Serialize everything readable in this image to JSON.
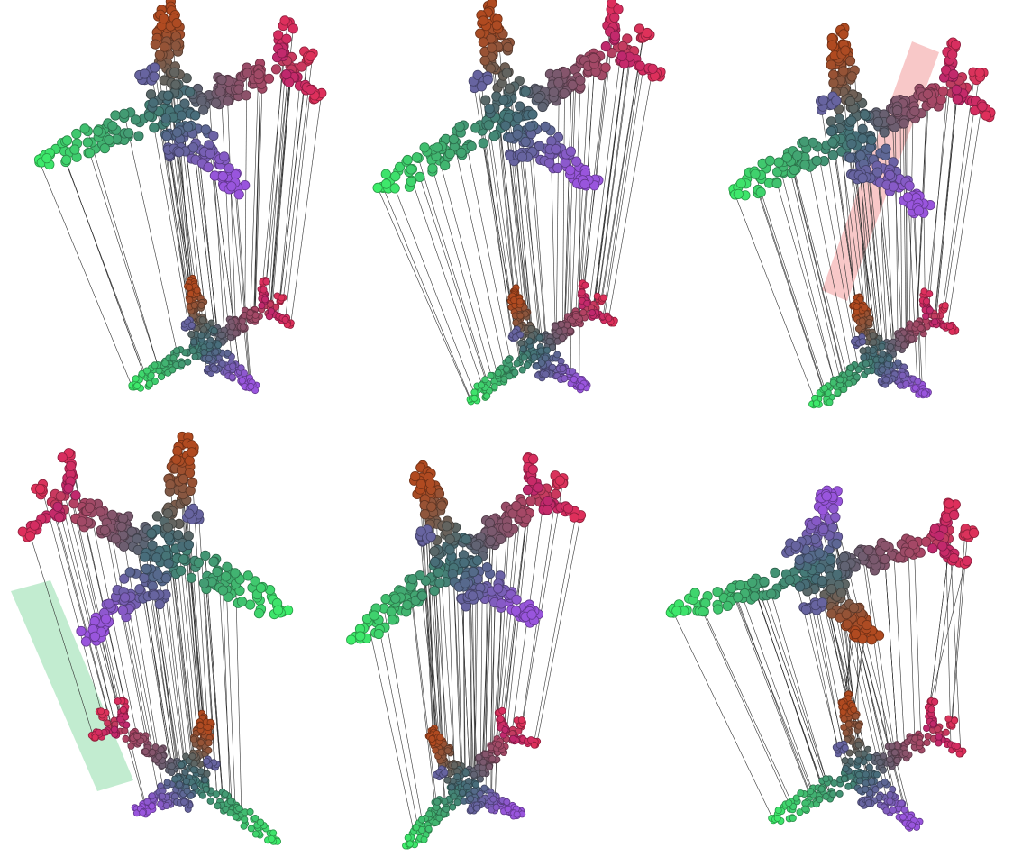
{
  "figure": {
    "description_hidden": "",
    "panels": [
      {
        "id": "panel-1",
        "row": 1,
        "col": 1,
        "highlight": null
      },
      {
        "id": "panel-2",
        "row": 1,
        "col": 2,
        "highlight": null
      },
      {
        "id": "panel-3",
        "row": 1,
        "col": 3,
        "highlight": "incorrect-correspondence"
      },
      {
        "id": "panel-4",
        "row": 2,
        "col": 1,
        "highlight": "correct-correspondence"
      },
      {
        "id": "panel-5",
        "row": 2,
        "col": 2,
        "highlight": null
      },
      {
        "id": "panel-6",
        "row": 2,
        "col": 3,
        "highlight": null
      }
    ]
  },
  "colors": {
    "nose": "#3df06a",
    "tail": "#e0305a",
    "wing_left": "#9955dd",
    "wing_right": "#b04a20",
    "fin": "#8a6a10",
    "correspondence_line": "#333333",
    "highlight_red": "#f29a9a",
    "highlight_green": "#8fdcaa"
  }
}
